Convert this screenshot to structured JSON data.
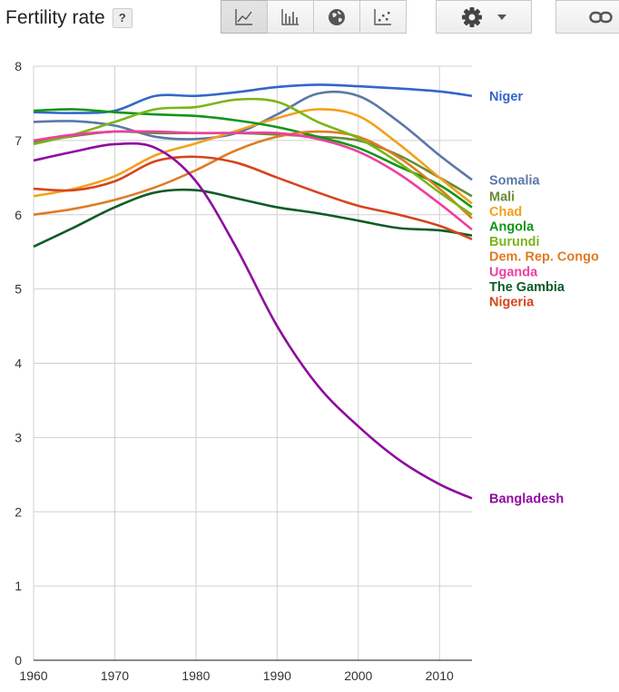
{
  "header": {
    "title": "Fertility rate",
    "help_label": "?"
  },
  "toolbar": {
    "buttons": [
      {
        "name": "line-chart-button",
        "icon": "line-chart-icon",
        "active": true
      },
      {
        "name": "bar-chart-button",
        "icon": "bar-chart-icon",
        "active": false
      },
      {
        "name": "map-button",
        "icon": "globe-icon",
        "active": false
      },
      {
        "name": "scatter-chart-button",
        "icon": "scatter-plot-icon",
        "active": false
      }
    ],
    "settings_icon": "gear-icon",
    "dropdown_icon": "caret-down-icon",
    "link_icon": "link-icon"
  },
  "chart_data": {
    "type": "line",
    "title": "Fertility rate",
    "xlabel": "",
    "ylabel": "",
    "xlim": [
      1960,
      2014
    ],
    "ylim": [
      0,
      8
    ],
    "x_ticks": [
      1960,
      1970,
      1980,
      1990,
      2000,
      2010
    ],
    "y_ticks": [
      0,
      1,
      2,
      3,
      4,
      5,
      6,
      7,
      8
    ],
    "grid": true,
    "legend": "right, labels at line ends",
    "x": [
      1960,
      1965,
      1970,
      1975,
      1980,
      1985,
      1990,
      1995,
      2000,
      2005,
      2010,
      2014
    ],
    "series": [
      {
        "name": "Niger",
        "color": "#3366cc",
        "values": [
          7.38,
          7.37,
          7.4,
          7.6,
          7.6,
          7.65,
          7.72,
          7.75,
          7.73,
          7.7,
          7.66,
          7.6
        ]
      },
      {
        "name": "Somalia",
        "color": "#5b78a6",
        "values": [
          7.25,
          7.26,
          7.2,
          7.05,
          7.02,
          7.1,
          7.35,
          7.63,
          7.6,
          7.25,
          6.8,
          6.47
        ]
      },
      {
        "name": "Mali",
        "color": "#6a8a36",
        "values": [
          6.97,
          7.06,
          7.12,
          7.1,
          7.1,
          7.1,
          7.08,
          7.05,
          7.0,
          6.8,
          6.5,
          6.25
        ]
      },
      {
        "name": "Chad",
        "color": "#f2a01b",
        "values": [
          6.25,
          6.35,
          6.52,
          6.8,
          6.96,
          7.13,
          7.3,
          7.42,
          7.33,
          6.95,
          6.5,
          6.15
        ]
      },
      {
        "name": "Angola",
        "color": "#109618",
        "values": [
          7.4,
          7.42,
          7.38,
          7.35,
          7.33,
          7.27,
          7.18,
          7.05,
          6.9,
          6.65,
          6.4,
          6.1
        ]
      },
      {
        "name": "Dem. Rep. Congo",
        "color": "#e07b22",
        "values": [
          6.0,
          6.08,
          6.2,
          6.37,
          6.6,
          6.87,
          7.05,
          7.12,
          7.05,
          6.77,
          6.35,
          5.95
        ]
      },
      {
        "name": "Burundi",
        "color": "#7cb518",
        "values": [
          6.95,
          7.08,
          7.25,
          7.42,
          7.45,
          7.55,
          7.52,
          7.25,
          7.03,
          6.7,
          6.3,
          6.0
        ]
      },
      {
        "name": "Uganda",
        "color": "#ee3fa0",
        "values": [
          7.0,
          7.08,
          7.12,
          7.12,
          7.1,
          7.1,
          7.1,
          7.02,
          6.85,
          6.55,
          6.15,
          5.8
        ]
      },
      {
        "name": "The Gambia",
        "color": "#0d5c26",
        "values": [
          5.57,
          5.83,
          6.1,
          6.3,
          6.33,
          6.22,
          6.1,
          6.02,
          5.92,
          5.82,
          5.79,
          5.72
        ]
      },
      {
        "name": "Nigeria",
        "color": "#d5451c",
        "values": [
          6.35,
          6.33,
          6.45,
          6.72,
          6.78,
          6.7,
          6.5,
          6.3,
          6.12,
          6.0,
          5.85,
          5.67
        ]
      },
      {
        "name": "Bangladesh",
        "color": "#8e0c9e",
        "values": [
          6.73,
          6.85,
          6.95,
          6.9,
          6.45,
          5.55,
          4.5,
          3.7,
          3.15,
          2.7,
          2.37,
          2.18
        ]
      }
    ]
  }
}
